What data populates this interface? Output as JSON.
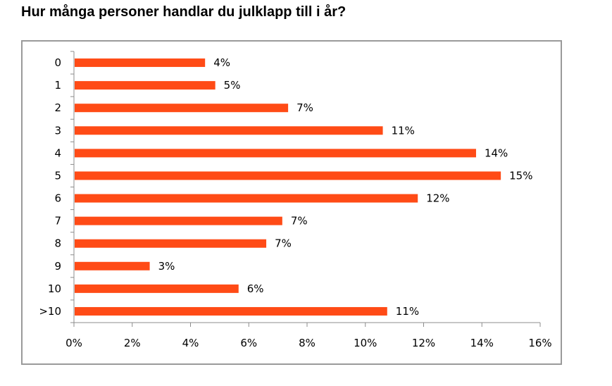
{
  "chart_data": {
    "type": "bar",
    "orientation": "horizontal",
    "title": "Hur många personer handlar du julklapp till i år?",
    "xlabel": "",
    "ylabel": "",
    "categories": [
      "0",
      "1",
      "2",
      "3",
      "4",
      "5",
      "6",
      "7",
      "8",
      "9",
      "10",
      ">10"
    ],
    "values": [
      4.5,
      4.85,
      7.35,
      10.6,
      13.8,
      14.65,
      11.8,
      7.15,
      6.6,
      2.6,
      5.65,
      10.75
    ],
    "value_labels": [
      "4%",
      "5%",
      "7%",
      "11%",
      "14%",
      "15%",
      "12%",
      "7%",
      "7%",
      "3%",
      "6%",
      "11%"
    ],
    "xlim": [
      0,
      16
    ],
    "xticks": [
      "0%",
      "2%",
      "4%",
      "6%",
      "8%",
      "10%",
      "12%",
      "14%",
      "16%"
    ],
    "bar_color": "#ff4b16",
    "grid": false,
    "legend": "none"
  }
}
